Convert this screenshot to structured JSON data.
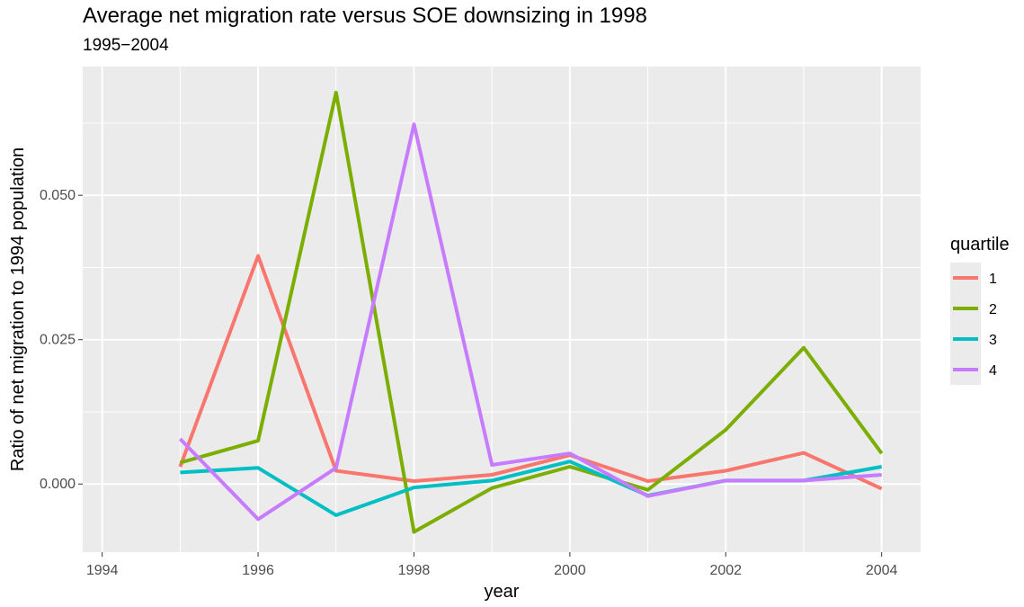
{
  "chart_data": {
    "type": "line",
    "title": "Average net migration rate versus SOE downsizing in 1998",
    "subtitle": "1995−2004",
    "xlabel": "year",
    "ylabel": "Ratio of net migration to 1994 population",
    "xlim": [
      1993.75,
      2004.5
    ],
    "ylim": [
      -0.0118,
      0.0723
    ],
    "x_ticks": [
      1994,
      1996,
      1998,
      2000,
      2002,
      2004
    ],
    "x_tick_labels": [
      "1994",
      "1996",
      "1998",
      "2000",
      "2002",
      "2004"
    ],
    "y_ticks": [
      0.0,
      0.025,
      0.05
    ],
    "y_tick_labels": [
      "0.000",
      "0.025",
      "0.050"
    ],
    "grid": true,
    "legend": {
      "title": "quartile",
      "placement": "right"
    },
    "x": [
      1995,
      1996,
      1997,
      1998,
      1999,
      2000,
      2001,
      2002,
      2003,
      2004
    ],
    "series": [
      {
        "name": "1",
        "color": "#F8766D",
        "values": [
          0.003,
          0.0395,
          0.0023,
          0.0005,
          0.0016,
          0.005,
          0.0005,
          0.0023,
          0.0054,
          -0.0008
        ]
      },
      {
        "name": "2",
        "color": "#7CAE00",
        "values": [
          0.0037,
          0.0075,
          0.0678,
          -0.0083,
          -0.0007,
          0.003,
          -0.001,
          0.0094,
          0.0236,
          0.0053
        ]
      },
      {
        "name": "3",
        "color": "#00BFC4",
        "values": [
          0.002,
          0.0028,
          -0.0054,
          -0.0006,
          0.0006,
          0.0039,
          -0.002,
          0.0006,
          0.0006,
          0.003
        ]
      },
      {
        "name": "4",
        "color": "#C77CFF",
        "values": [
          0.0078,
          -0.0061,
          0.0028,
          0.0623,
          0.0033,
          0.0053,
          -0.0021,
          0.0006,
          0.0006,
          0.0016
        ]
      }
    ]
  }
}
